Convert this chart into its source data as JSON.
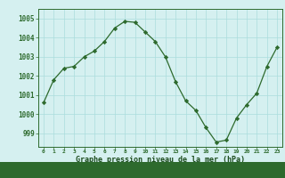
{
  "x": [
    0,
    1,
    2,
    3,
    4,
    5,
    6,
    7,
    8,
    9,
    10,
    11,
    12,
    13,
    14,
    15,
    16,
    17,
    18,
    19,
    20,
    21,
    22,
    23
  ],
  "y": [
    1000.6,
    1001.8,
    1002.4,
    1002.5,
    1003.0,
    1003.3,
    1003.8,
    1004.5,
    1004.85,
    1004.8,
    1004.3,
    1003.8,
    1003.0,
    1001.7,
    1000.7,
    1000.2,
    999.3,
    998.55,
    998.65,
    999.8,
    1000.5,
    1001.1,
    1002.5,
    1003.5
  ],
  "line_color": "#2d6a2d",
  "marker": "D",
  "marker_size": 2.2,
  "bg_color": "#d5f0f0",
  "grid_color": "#aadddd",
  "xlabel": "Graphe pression niveau de la mer (hPa)",
  "xlabel_color": "#1a4a1a",
  "ylabel_ticks": [
    999,
    1000,
    1001,
    1002,
    1003,
    1004,
    1005
  ],
  "ylim": [
    998.3,
    1005.5
  ],
  "xlim": [
    -0.5,
    23.5
  ],
  "tick_color": "#2d6a2d",
  "label_color": "#1a4a1a"
}
